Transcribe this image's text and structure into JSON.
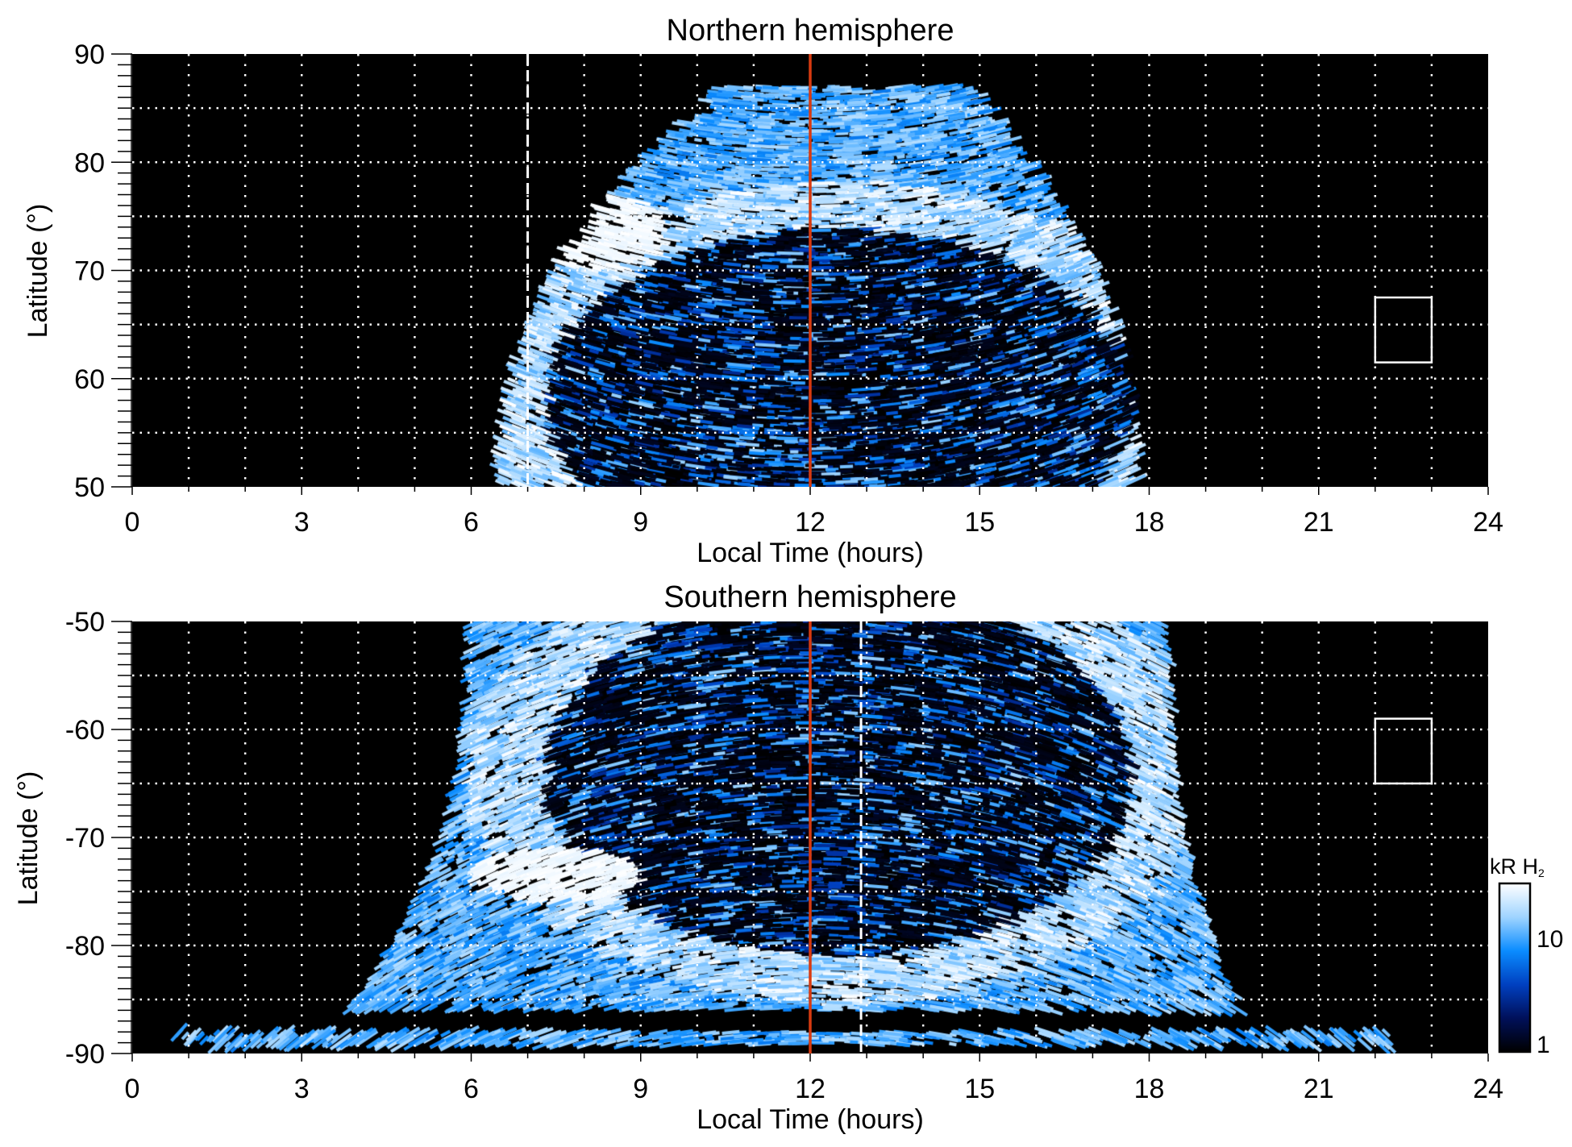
{
  "chart_data": [
    {
      "type": "heatmap",
      "title": "Northern hemisphere",
      "xlabel": "Local Time (hours)",
      "ylabel": "Latitude (°)",
      "xlim": [
        0,
        24
      ],
      "ylim": [
        50,
        90
      ],
      "xticks": [
        "0",
        "3",
        "6",
        "9",
        "12",
        "15",
        "18",
        "21",
        "24"
      ],
      "yticks": [
        "50",
        "60",
        "70",
        "80",
        "90"
      ],
      "grid": true,
      "emission_lt_range_at_lat50": [
        6.5,
        17.8
      ],
      "max_latitude": 87,
      "bright_spot": {
        "lt": [
          7,
          9.5
        ],
        "lat": [
          70,
          77
        ]
      },
      "noon_line_lt": 12,
      "dashed_line_lt": 7,
      "box": {
        "lt": [
          22,
          23
        ],
        "lat": [
          61.5,
          67.5
        ]
      }
    },
    {
      "type": "heatmap",
      "title": "Southern hemisphere",
      "xlabel": "Local Time (hours)",
      "ylabel": "Latitude (°)",
      "xlim": [
        0,
        24
      ],
      "ylim": [
        -90,
        -50
      ],
      "xticks": [
        "0",
        "3",
        "6",
        "9",
        "12",
        "15",
        "18",
        "21",
        "24"
      ],
      "yticks": [
        "-90",
        "-80",
        "-70",
        "-60",
        "-50"
      ],
      "grid": true,
      "emission_lt_range_at_lat_minus50": [
        6,
        18.3
      ],
      "polar_streak": {
        "lat": -88.5,
        "lt": [
          0.8,
          22.2
        ]
      },
      "bright_spot": {
        "lt": [
          6,
          9
        ],
        "lat": [
          -76,
          -71
        ]
      },
      "noon_line_lt": 12,
      "dashed_line_lt": 12.9,
      "box": {
        "lt": [
          22,
          23
        ],
        "lat": [
          -65,
          -59
        ]
      }
    }
  ],
  "colorbar": {
    "unit": "kR H",
    "unit_sub": "2",
    "ticks": [
      "1",
      "10"
    ],
    "range": [
      1,
      25
    ],
    "scale": "log",
    "colors": [
      "#000000",
      "#00105a",
      "#0040c0",
      "#0a8cff",
      "#9fd4ff",
      "#ffffff"
    ]
  },
  "colors": {
    "noon_line": "#d83a10",
    "grid": "#ffffff",
    "box": "#ffffff"
  }
}
